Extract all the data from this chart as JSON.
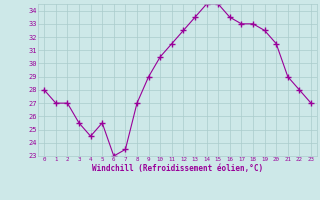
{
  "x": [
    0,
    1,
    2,
    3,
    4,
    5,
    6,
    7,
    8,
    9,
    10,
    11,
    12,
    13,
    14,
    15,
    16,
    17,
    18,
    19,
    20,
    21,
    22,
    23
  ],
  "y": [
    28,
    27,
    27,
    25.5,
    24.5,
    25.5,
    23,
    23.5,
    27,
    29,
    30.5,
    31.5,
    32.5,
    33.5,
    34.5,
    34.5,
    33.5,
    33,
    33,
    32.5,
    31.5,
    29,
    28,
    27
  ],
  "line_color": "#990099",
  "marker": "D",
  "marker_size": 2.0,
  "bg_color": "#cde8e8",
  "grid_color": "#aacccc",
  "xlabel": "Windchill (Refroidissement éolien,°C)",
  "xlabel_color": "#990099",
  "tick_color": "#990099",
  "ylim": [
    23,
    34.5
  ],
  "xlim": [
    -0.5,
    23.5
  ],
  "yticks": [
    23,
    24,
    25,
    26,
    27,
    28,
    29,
    30,
    31,
    32,
    33,
    34
  ],
  "xticks": [
    0,
    1,
    2,
    3,
    4,
    5,
    6,
    7,
    8,
    9,
    10,
    11,
    12,
    13,
    14,
    15,
    16,
    17,
    18,
    19,
    20,
    21,
    22,
    23
  ]
}
